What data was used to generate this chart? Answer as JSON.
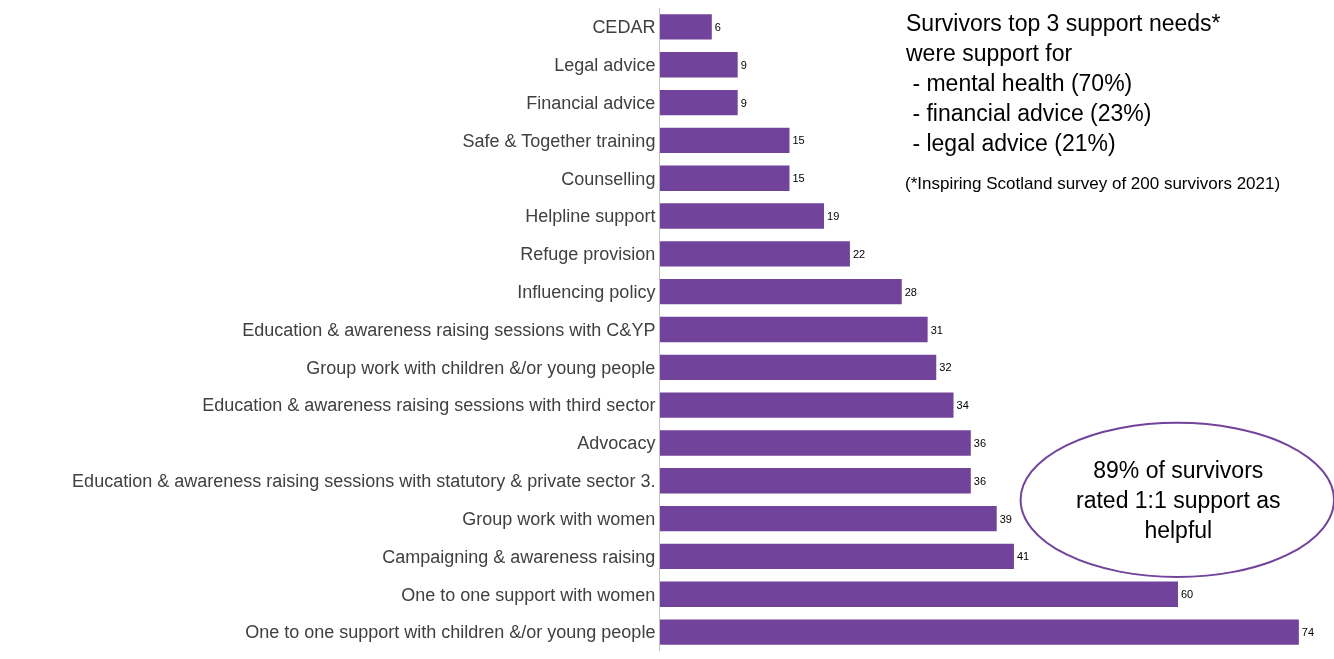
{
  "chart_data": {
    "type": "bar",
    "orientation": "horizontal",
    "data_labels": true,
    "legend": false,
    "categories": [
      "CEDAR",
      "Legal advice",
      "Financial advice",
      "Safe & Together training",
      "Counselling",
      "Helpline support",
      "Refuge provision",
      "Influencing policy",
      "Education & awareness raising sessions with C&YP",
      "Group work with children &/or young people",
      "Education & awareness raising sessions with third sector",
      "Advocacy",
      "Education & awareness raising sessions with statutory & private sector 3.",
      "Group work with women",
      "Campaigning & awareness raising",
      "One to one support with women",
      "One to one support with children &/or young people"
    ],
    "values": [
      6,
      9,
      9,
      15,
      15,
      19,
      22,
      28,
      31,
      32,
      34,
      36,
      36,
      39,
      41,
      60,
      74
    ],
    "color": "#71439a",
    "annotations": [
      "Survivors top 3 support needs*\nwere support for\n - mental health (70%)\n - financial advice (23%)\n - legal advice (21%)",
      "(*Inspiring Scotland survey of 200 survivors 2021)",
      "89% of survivors\nrated 1:1 support as\nhelpful"
    ]
  }
}
